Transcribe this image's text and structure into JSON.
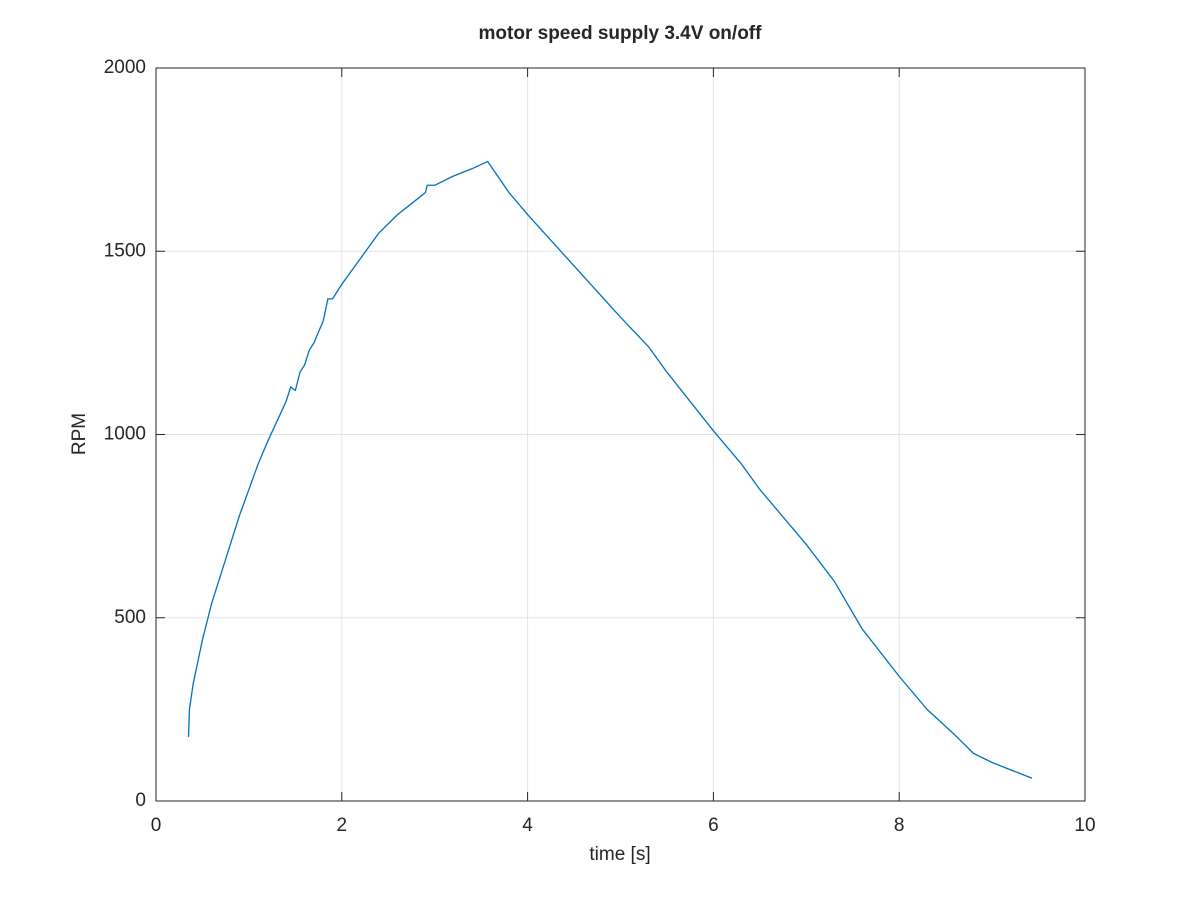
{
  "chart_data": {
    "type": "line",
    "title": "motor speed supply 3.4V on/off",
    "x_label": "time [s]",
    "y_label": "RPM",
    "xlim": [
      0,
      10
    ],
    "xticks": [
      0,
      2,
      4,
      6,
      8,
      10
    ],
    "ylim": [
      0,
      2000
    ],
    "yticks": [
      0,
      500,
      1000,
      1500,
      2000
    ],
    "grid": true,
    "x": [
      0.35,
      0.36,
      0.4,
      0.5,
      0.6,
      0.7,
      0.8,
      0.9,
      1.0,
      1.1,
      1.2,
      1.3,
      1.4,
      1.45,
      1.5,
      1.55,
      1.6,
      1.65,
      1.7,
      1.8,
      1.85,
      1.9,
      2.0,
      2.2,
      2.4,
      2.6,
      2.8,
      2.9,
      2.92,
      3.0,
      3.2,
      3.4,
      3.57,
      3.8,
      4.0,
      4.5,
      5.0,
      5.3,
      5.5,
      6.0,
      6.3,
      6.5,
      7.0,
      7.3,
      7.6,
      8.0,
      8.3,
      8.6,
      8.8,
      9.0,
      9.2,
      9.43
    ],
    "series": [
      {
        "name": "RPM",
        "color": "#0072bd",
        "values": [
          175,
          250,
          320,
          440,
          540,
          620,
          700,
          780,
          850,
          920,
          980,
          1035,
          1090,
          1130,
          1120,
          1170,
          1190,
          1230,
          1250,
          1310,
          1370,
          1370,
          1410,
          1480,
          1550,
          1600,
          1640,
          1660,
          1680,
          1680,
          1705,
          1725,
          1745,
          1660,
          1600,
          1460,
          1320,
          1240,
          1170,
          1010,
          920,
          850,
          700,
          600,
          470,
          340,
          250,
          180,
          130,
          105,
          85,
          62
        ]
      }
    ]
  }
}
